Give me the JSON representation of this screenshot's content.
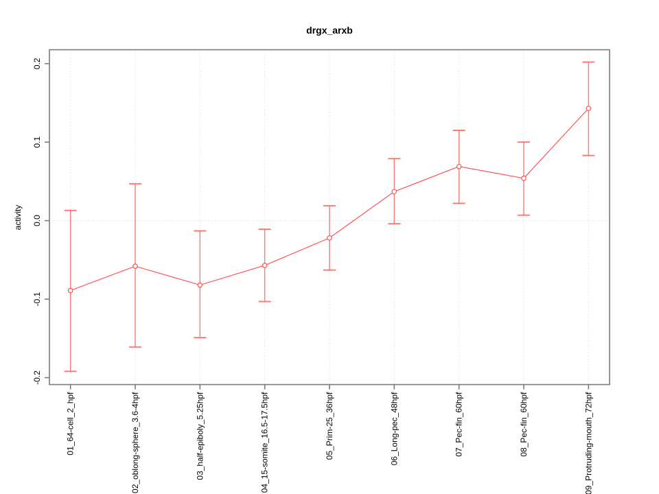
{
  "figure": {
    "background": "#ffffff"
  },
  "chart_data": {
    "type": "line",
    "title": "drgx_arxb",
    "xlabel": "",
    "ylabel": "activity",
    "categories": [
      "01_64-cell_2_hpf",
      "02_oblong-sphere_3.6-4hpf",
      "03_half-epiboly_5.25hpf",
      "04_15-somite_16.5-17.5hpf",
      "05_Prim-25_36hpf",
      "06_Long-pec_48hpf",
      "07_Pec-fin_60hpf",
      "08_Pec-fin_60hpf",
      "09_Protruding-mouth_72hpf"
    ],
    "series": [
      {
        "name": "drgx_arxb",
        "values": [
          -0.089,
          -0.058,
          -0.082,
          -0.057,
          -0.022,
          0.037,
          0.069,
          0.054,
          0.143
        ],
        "error_high": [
          0.013,
          0.047,
          -0.013,
          -0.011,
          0.019,
          0.079,
          0.115,
          0.1,
          0.202
        ],
        "error_low": [
          -0.192,
          -0.161,
          -0.149,
          -0.103,
          -0.063,
          -0.004,
          0.022,
          0.007,
          0.083
        ]
      }
    ],
    "ylim": [
      -0.2088,
      0.2177
    ],
    "yticks": [
      -0.2,
      -0.1,
      0.0,
      0.1,
      0.2
    ],
    "ytick_labels": [
      "-0.2",
      "-0.1",
      "0.0",
      "0.1",
      "0.2"
    ],
    "grid": "light dotted vertical line at each category; dotted horizontal line at y=0",
    "legend": "none",
    "marker": "open-circle",
    "colors": {
      "series": "#ff5252",
      "errorbar": "#ff6b6b",
      "grid": "#d4d4d4",
      "axis_box": "#7a7a7a",
      "text": "#000000",
      "background": "#ffffff"
    }
  }
}
